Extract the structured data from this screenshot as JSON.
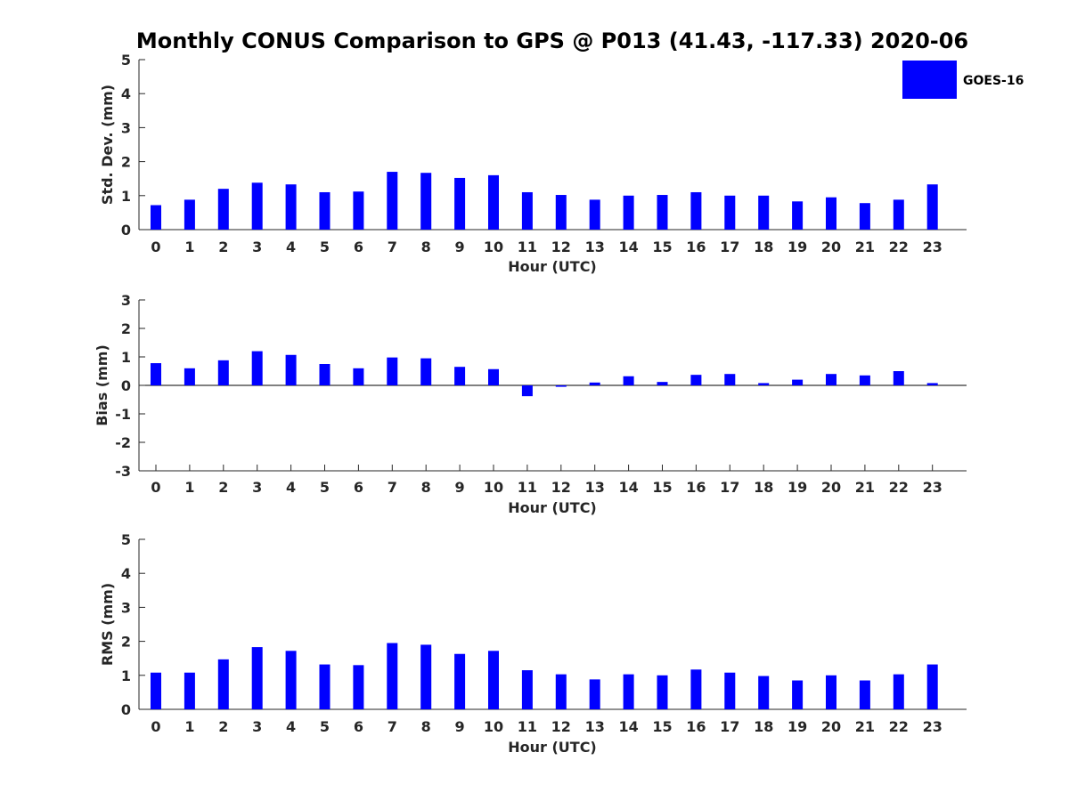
{
  "chart_data": [
    {
      "type": "bar",
      "title": "Monthly CONUS Comparison to GPS @ P013 (41.43, -117.33) 2020-06",
      "xlabel": "Hour (UTC)",
      "ylabel": "Std. Dev. (mm)",
      "ylim": [
        0,
        5
      ],
      "yticks": [
        "0",
        "1",
        "2",
        "3",
        "4",
        "5"
      ],
      "categories": [
        "0",
        "1",
        "2",
        "3",
        "4",
        "5",
        "6",
        "7",
        "8",
        "9",
        "10",
        "11",
        "12",
        "13",
        "14",
        "15",
        "16",
        "17",
        "18",
        "19",
        "20",
        "21",
        "22",
        "23"
      ],
      "series": [
        {
          "name": "GOES-16",
          "color": "#0000ff",
          "values": [
            0.72,
            0.88,
            1.2,
            1.38,
            1.33,
            1.1,
            1.12,
            1.7,
            1.67,
            1.52,
            1.6,
            1.1,
            1.02,
            0.88,
            1.0,
            1.02,
            1.1,
            1.0,
            1.0,
            0.83,
            0.95,
            0.78,
            0.88,
            1.33
          ]
        }
      ],
      "legend": "top-right",
      "grid": false
    },
    {
      "type": "bar",
      "xlabel": "Hour (UTC)",
      "ylabel": "Bias (mm)",
      "ylim": [
        -3,
        3
      ],
      "yticks": [
        "-3",
        "-2",
        "-1",
        "0",
        "1",
        "2",
        "3"
      ],
      "categories": [
        "0",
        "1",
        "2",
        "3",
        "4",
        "5",
        "6",
        "7",
        "8",
        "9",
        "10",
        "11",
        "12",
        "13",
        "14",
        "15",
        "16",
        "17",
        "18",
        "19",
        "20",
        "21",
        "22",
        "23"
      ],
      "series": [
        {
          "name": "GOES-16",
          "color": "#0000ff",
          "values": [
            0.78,
            0.6,
            0.88,
            1.2,
            1.07,
            0.75,
            0.6,
            0.98,
            0.95,
            0.65,
            0.57,
            -0.38,
            -0.05,
            0.1,
            0.32,
            0.12,
            0.37,
            0.4,
            0.08,
            0.2,
            0.4,
            0.35,
            0.5,
            0.08
          ]
        }
      ],
      "grid": false
    },
    {
      "type": "bar",
      "xlabel": "Hour (UTC)",
      "ylabel": "RMS (mm)",
      "ylim": [
        0,
        5
      ],
      "yticks": [
        "0",
        "1",
        "2",
        "3",
        "4",
        "5"
      ],
      "categories": [
        "0",
        "1",
        "2",
        "3",
        "4",
        "5",
        "6",
        "7",
        "8",
        "9",
        "10",
        "11",
        "12",
        "13",
        "14",
        "15",
        "16",
        "17",
        "18",
        "19",
        "20",
        "21",
        "22",
        "23"
      ],
      "series": [
        {
          "name": "GOES-16",
          "color": "#0000ff",
          "values": [
            1.08,
            1.08,
            1.47,
            1.83,
            1.72,
            1.32,
            1.3,
            1.95,
            1.9,
            1.63,
            1.72,
            1.15,
            1.03,
            0.88,
            1.03,
            1.0,
            1.17,
            1.08,
            0.98,
            0.85,
            1.0,
            0.85,
            1.03,
            1.32
          ]
        }
      ],
      "grid": false
    }
  ]
}
